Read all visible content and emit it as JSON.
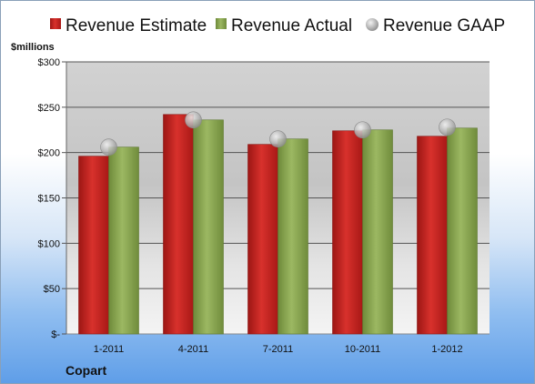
{
  "company": "Copart",
  "colors": {
    "estimate": "#c8201e",
    "actual": "#8aa94f",
    "gaap": "#b0b0b0"
  },
  "chart_data": {
    "type": "bar",
    "ylabel": "$millions",
    "ylim": [
      0,
      300
    ],
    "yticks": [
      {
        "value": 0,
        "label": "$-"
      },
      {
        "value": 50,
        "label": "$50"
      },
      {
        "value": 100,
        "label": "$100"
      },
      {
        "value": 150,
        "label": "$150"
      },
      {
        "value": 200,
        "label": "$200"
      },
      {
        "value": 250,
        "label": "$250"
      },
      {
        "value": 300,
        "label": "$300"
      }
    ],
    "categories": [
      "1-2011",
      "4-2011",
      "7-2011",
      "10-2011",
      "1-2012"
    ],
    "series": [
      {
        "name": "Revenue Estimate",
        "kind": "bar",
        "values": [
          196,
          242,
          209,
          224,
          218
        ]
      },
      {
        "name": "Revenue Actual",
        "kind": "bar",
        "values": [
          206,
          236,
          215,
          225,
          227
        ]
      },
      {
        "name": "Revenue GAAP",
        "kind": "marker",
        "values": [
          206,
          236,
          215,
          225,
          228
        ]
      }
    ],
    "legend": "top",
    "grid": true
  }
}
